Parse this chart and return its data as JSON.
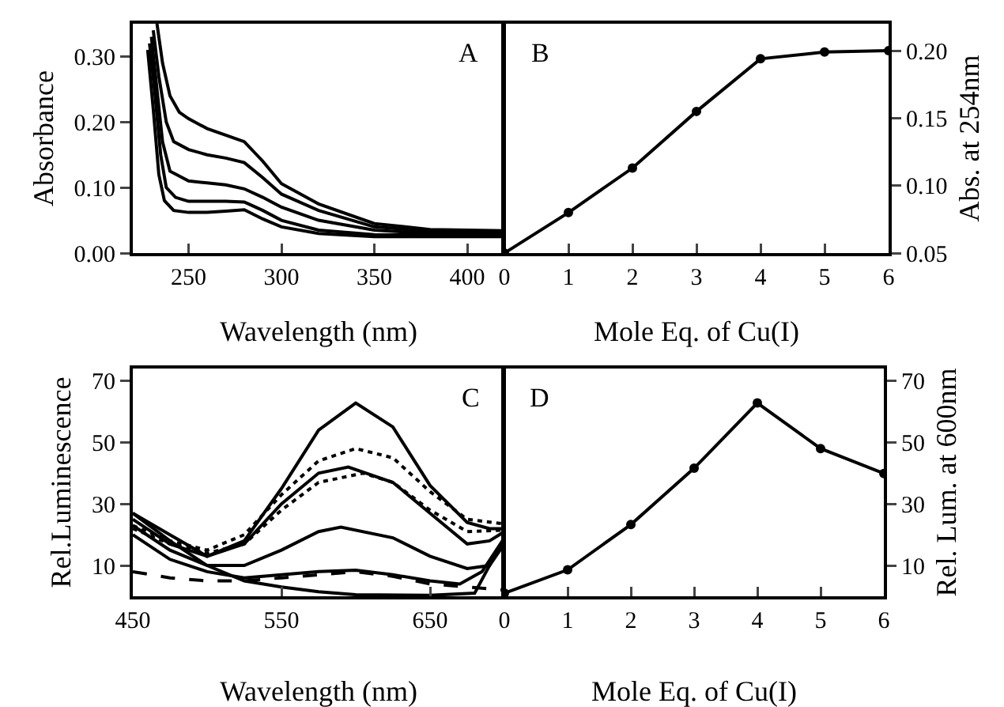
{
  "chart_data": [
    {
      "type": "line",
      "xlabel": "Wavelength (nm)",
      "ylabel": "Absorbance",
      "annotations": [
        "A"
      ],
      "marker": "none",
      "line_style": "solid",
      "xlim": [
        220,
        420
      ],
      "ylim": [
        0,
        0.35
      ],
      "xticks": [
        250,
        300,
        350,
        400
      ],
      "yticks": [
        {
          "value": 0,
          "label": "0.00"
        },
        {
          "value": 0.1,
          "label": "0.10"
        },
        {
          "value": 0.2,
          "label": "0.20"
        },
        {
          "value": 0.3,
          "label": "0.30"
        }
      ],
      "series": [
        {
          "color": "#000000",
          "x": [
            233,
            236,
            240,
            245,
            250,
            260,
            270,
            280,
            290,
            300,
            320,
            350,
            380,
            420
          ],
          "values": [
            0.35,
            0.29,
            0.24,
            0.215,
            0.205,
            0.19,
            0.18,
            0.17,
            0.14,
            0.106,
            0.075,
            0.045,
            0.036,
            0.034
          ]
        },
        {
          "color": "#000000",
          "x": [
            231,
            234,
            238,
            242,
            250,
            260,
            270,
            280,
            290,
            300,
            320,
            350,
            380,
            420
          ],
          "values": [
            0.34,
            0.27,
            0.2,
            0.17,
            0.158,
            0.15,
            0.145,
            0.138,
            0.115,
            0.09,
            0.065,
            0.04,
            0.033,
            0.031
          ]
        },
        {
          "color": "#000000",
          "x": [
            230,
            233,
            236,
            240,
            250,
            260,
            270,
            280,
            290,
            300,
            320,
            350,
            380,
            420
          ],
          "values": [
            0.33,
            0.25,
            0.17,
            0.125,
            0.11,
            0.107,
            0.104,
            0.098,
            0.085,
            0.07,
            0.05,
            0.035,
            0.03,
            0.029
          ]
        },
        {
          "color": "#000000",
          "x": [
            229,
            232,
            235,
            238,
            243,
            250,
            260,
            270,
            280,
            290,
            300,
            320,
            350,
            420
          ],
          "values": [
            0.32,
            0.24,
            0.15,
            0.1,
            0.085,
            0.079,
            0.079,
            0.079,
            0.078,
            0.065,
            0.05,
            0.035,
            0.028,
            0.027
          ]
        },
        {
          "color": "#000000",
          "x": [
            228,
            231,
            234,
            237,
            242,
            250,
            260,
            270,
            280,
            290,
            300,
            320,
            350,
            420
          ],
          "values": [
            0.31,
            0.22,
            0.12,
            0.08,
            0.065,
            0.062,
            0.062,
            0.064,
            0.066,
            0.052,
            0.04,
            0.03,
            0.025,
            0.025
          ]
        }
      ]
    },
    {
      "type": "line",
      "xlabel": "Mole Eq. of Cu(I)",
      "y2label": "Abs. at 254nm",
      "annotations": [
        "B"
      ],
      "marker": "circle",
      "line_style": "solid",
      "xlim": [
        0,
        6
      ],
      "y2lim": [
        0.05,
        0.22
      ],
      "xticks": [
        0,
        1,
        2,
        3,
        4,
        5,
        6
      ],
      "y2ticks": [
        {
          "value": 0.05,
          "label": "0.05"
        },
        {
          "value": 0.1,
          "label": "0.10"
        },
        {
          "value": 0.15,
          "label": "0.15"
        },
        {
          "value": 0.2,
          "label": "0.20"
        }
      ],
      "series": [
        {
          "color": "#000000",
          "axis": "y2",
          "x": [
            0,
            1,
            2,
            3,
            4,
            5,
            6
          ],
          "values": [
            0.05,
            0.08,
            0.113,
            0.155,
            0.194,
            0.199,
            0.2
          ]
        }
      ]
    },
    {
      "type": "line",
      "xlabel": "Wavelength (nm)",
      "ylabel": "Rel.Luminescence",
      "annotations": [
        "C"
      ],
      "marker": "none",
      "xlim": [
        450,
        700
      ],
      "ylim": [
        0,
        74
      ],
      "xticks": [
        450,
        550,
        650
      ],
      "yticks": [
        10,
        30,
        50,
        70
      ],
      "series": [
        {
          "color": "#000000",
          "line_style": "solid",
          "x": [
            450,
            475,
            500,
            525,
            550,
            575,
            600,
            625,
            650,
            675,
            690,
            700
          ],
          "values": [
            27,
            20,
            13,
            18,
            35,
            54,
            62.8,
            55,
            36,
            24,
            22,
            22
          ]
        },
        {
          "color": "#000000",
          "line_style": "dotted",
          "x": [
            450,
            475,
            500,
            525,
            550,
            575,
            600,
            625,
            650,
            675,
            700
          ],
          "values": [
            23,
            18,
            15,
            20,
            33,
            44,
            48,
            45,
            34,
            25,
            23.5
          ]
        },
        {
          "color": "#000000",
          "line_style": "solid",
          "x": [
            450,
            475,
            500,
            525,
            550,
            575,
            595,
            625,
            650,
            675,
            690,
            700
          ],
          "values": [
            25,
            17,
            13,
            17,
            30,
            40,
            42,
            37,
            27,
            17,
            18,
            21
          ]
        },
        {
          "color": "#000000",
          "line_style": "dotted",
          "x": [
            450,
            475,
            500,
            525,
            550,
            575,
            605,
            625,
            650,
            675,
            700
          ],
          "values": [
            22,
            17,
            14,
            17,
            28,
            37,
            40,
            37,
            28,
            21,
            21.5
          ]
        },
        {
          "color": "#000000",
          "line_style": "solid",
          "x": [
            450,
            475,
            500,
            525,
            550,
            575,
            590,
            625,
            650,
            675,
            690,
            700
          ],
          "values": [
            23,
            15,
            10,
            10,
            15,
            21,
            22.5,
            19,
            13,
            9,
            10,
            19
          ]
        },
        {
          "color": "#000000",
          "line_style": "solid",
          "x": [
            450,
            475,
            500,
            525,
            550,
            575,
            600,
            625,
            650,
            670,
            685,
            700
          ],
          "values": [
            20,
            12,
            8,
            6,
            7,
            8,
            8.5,
            7,
            5,
            4,
            8,
            19
          ]
        },
        {
          "color": "#000000",
          "line_style": "dashed",
          "x": [
            450,
            475,
            500,
            525,
            550,
            575,
            600,
            625,
            650,
            675,
            700
          ],
          "values": [
            8,
            6,
            5,
            5,
            6,
            7,
            8,
            6.5,
            4,
            3,
            2
          ]
        },
        {
          "color": "#000000",
          "line_style": "solid",
          "x": [
            450,
            475,
            500,
            525,
            550,
            575,
            600,
            650,
            680,
            690,
            700
          ],
          "values": [
            27,
            18,
            10,
            5,
            3,
            1.5,
            0.5,
            0.3,
            1,
            10,
            17
          ]
        }
      ]
    },
    {
      "type": "line",
      "xlabel": "Mole Eq. of Cu(I)",
      "y2label": "Rel. Lum. at 600nm",
      "annotations": [
        "D"
      ],
      "marker": "circle",
      "line_style": "solid",
      "xlim": [
        0,
        6
      ],
      "y2lim": [
        0,
        74
      ],
      "xticks": [
        0,
        1,
        2,
        3,
        4,
        5,
        6
      ],
      "y2ticks": [
        10,
        30,
        50,
        70
      ],
      "series": [
        {
          "color": "#000000",
          "axis": "y2",
          "x": [
            0,
            1,
            2,
            3,
            4,
            5,
            6
          ],
          "values": [
            1,
            8.6,
            23.3,
            41.6,
            62.8,
            48,
            39.9
          ]
        }
      ]
    }
  ]
}
